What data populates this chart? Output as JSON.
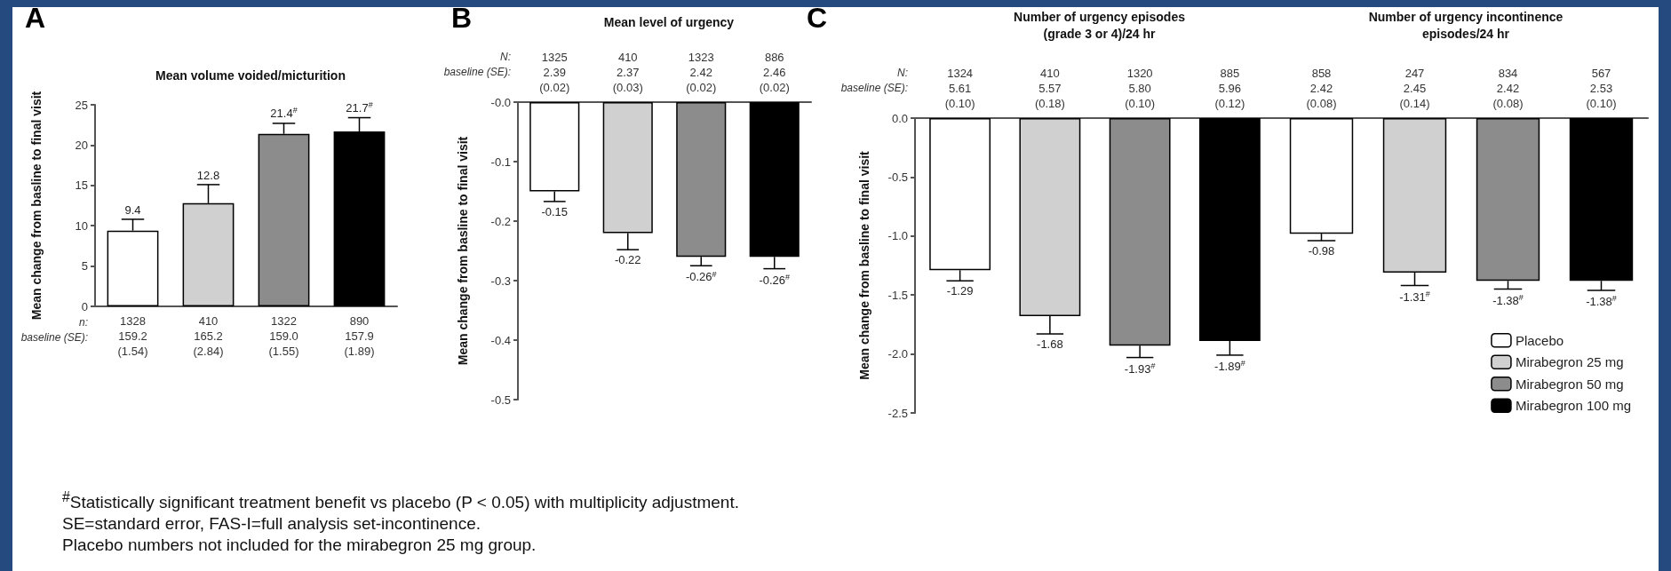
{
  "chart_data": [
    {
      "type": "bar",
      "title": "Mean volume voided/micturition",
      "ylabel": "Mean change from basline to final visit",
      "annotations": [
        "A",
        "n:",
        "baseline (SE):",
        "$^{#}$Statistically significant treatment benefit vs placebo (P < 0.05) with multiplicity adjustment.",
        "SE=standard error, FAS-I=full analysis set-incontinence.",
        "Placebo numbers not included for the mirabegron 25 mg group."
      ],
      "categories": [
        "1328\n159.2\n(1.54)",
        "410\n165.2\n(2.84)",
        "1322\n159.0\n(1.55)",
        "890\n157.9\n(1.89)"
      ],
      "series": [
        {
          "color": "#ffffff",
          "values": [
            9.4,
            null,
            null,
            null
          ],
          "errors": [
            [
              9.4,
              10.8
            ],
            null,
            null,
            null
          ],
          "value_labels": [
            "9.4",
            null,
            null,
            null
          ]
        },
        {
          "color": "#d0d0d0",
          "values": [
            null,
            12.8,
            null,
            null
          ],
          "errors": [
            null,
            [
              12.8,
              15.1
            ],
            null,
            null
          ],
          "value_labels": [
            null,
            "12.8",
            null,
            null
          ]
        },
        {
          "color": "#8c8c8c",
          "values": [
            null,
            null,
            21.4,
            null
          ],
          "errors": [
            null,
            null,
            [
              21.4,
              22.7
            ],
            null
          ],
          "value_labels": [
            null,
            null,
            "21.4$^{#}$",
            null
          ]
        },
        {
          "color": "#000000",
          "values": [
            null,
            null,
            null,
            21.7
          ],
          "errors": [
            null,
            null,
            null,
            [
              21.7,
              23.4
            ]
          ],
          "value_labels": [
            null,
            null,
            null,
            "21.7$^{#}$"
          ]
        }
      ],
      "ylim": [
        0,
        25
      ],
      "yticks": [
        0,
        5,
        10,
        15,
        20,
        25
      ],
      "grid": false,
      "legend": false
    },
    {
      "type": "bar",
      "title": "Mean level of urgency",
      "ylabel": "Mean change from basline to final visit",
      "annotations": [
        "B",
        "N:",
        "baseline (SE):"
      ],
      "categories": [
        "1325\n2.39\n(0.02)",
        "410\n2.37\n(0.03)",
        "1323\n2.42\n(0.02)",
        "886\n2.46\n(0.02)"
      ],
      "series": [
        {
          "color": "#ffffff",
          "values": [
            -0.15,
            null,
            null,
            null
          ],
          "errors": [
            [
              -0.167,
              -0.15
            ],
            null,
            null,
            null
          ],
          "value_labels": [
            "-0.15",
            null,
            null,
            null
          ]
        },
        {
          "color": "#d0d0d0",
          "values": [
            null,
            -0.22,
            null,
            null
          ],
          "errors": [
            null,
            [
              -0.248,
              -0.22
            ],
            null,
            null
          ],
          "value_labels": [
            null,
            "-0.22",
            null,
            null
          ]
        },
        {
          "color": "#8c8c8c",
          "values": [
            null,
            null,
            -0.26,
            null
          ],
          "errors": [
            null,
            null,
            [
              -0.275,
              -0.26
            ],
            null
          ],
          "value_labels": [
            null,
            null,
            "-0.26$^{#}$",
            null
          ]
        },
        {
          "color": "#000000",
          "values": [
            null,
            null,
            null,
            -0.26
          ],
          "errors": [
            null,
            null,
            null,
            [
              -0.28,
              -0.26
            ]
          ],
          "value_labels": [
            null,
            null,
            null,
            "-0.26$^{#}$"
          ]
        }
      ],
      "ylim": [
        -0.5,
        0
      ],
      "yticks": [
        {
          "value": 0,
          "label": "-0.0"
        },
        -0.1,
        -0.2,
        -0.3,
        -0.4,
        -0.5
      ],
      "grid": false,
      "legend": false
    },
    {
      "type": "bar",
      "title": "Number of urgency episodes\n(grade 3 or 4)/24 hr",
      "ylabel": "Mean change from basline to final visit",
      "annotations": [
        "C",
        "N:",
        "baseline (SE):"
      ],
      "categories": [
        "1324\n5.61\n(0.10)",
        "410\n5.57\n(0.18)",
        "1320\n5.80\n(0.10)",
        "885\n5.96\n(0.12)"
      ],
      "series": [
        {
          "color": "#ffffff",
          "values": [
            -1.29,
            null,
            null,
            null
          ],
          "errors": [
            [
              -1.38,
              -1.29
            ],
            null,
            null,
            null
          ],
          "value_labels": [
            "-1.29",
            null,
            null,
            null
          ]
        },
        {
          "color": "#d0d0d0",
          "values": [
            null,
            -1.68,
            null,
            null
          ],
          "errors": [
            null,
            [
              -1.83,
              -1.68
            ],
            null,
            null
          ],
          "value_labels": [
            null,
            "-1.68",
            null,
            null
          ]
        },
        {
          "color": "#8c8c8c",
          "values": [
            null,
            null,
            -1.93,
            null
          ],
          "errors": [
            null,
            null,
            [
              -2.03,
              -1.93
            ],
            null
          ],
          "value_labels": [
            null,
            null,
            "-1.93$^{#}$",
            null
          ]
        },
        {
          "color": "#000000",
          "values": [
            null,
            null,
            null,
            -1.89
          ],
          "errors": [
            null,
            null,
            null,
            [
              -2.01,
              -1.89
            ]
          ],
          "value_labels": [
            null,
            null,
            null,
            "-1.89$^{#}$"
          ]
        }
      ],
      "ylim": [
        -2.5,
        0
      ],
      "yticks": [
        {
          "value": 0,
          "label": "0.0"
        },
        -0.5,
        {
          "value": -1,
          "label": "-1.0"
        },
        -1.5,
        {
          "value": -2,
          "label": "-2.0"
        },
        -2.5
      ],
      "grid": false,
      "legend": false
    },
    {
      "type": "bar",
      "title": "Number of urgency incontinence\nepisodes/24 hr",
      "categories": [
        "858\n2.42\n(0.08)",
        "247\n2.45\n(0.14)",
        "834\n2.42\n(0.08)",
        "567\n2.53\n(0.10)"
      ],
      "series": [
        {
          "name": "Placebo",
          "color": "#ffffff",
          "values": [
            -0.98,
            null,
            null,
            null
          ],
          "errors": [
            [
              -1.04,
              -0.98
            ],
            null,
            null,
            null
          ],
          "value_labels": [
            "-0.98",
            null,
            null,
            null
          ]
        },
        {
          "name": "Mirabegron 25 mg",
          "color": "#d0d0d0",
          "values": [
            null,
            -1.31,
            null,
            null
          ],
          "errors": [
            null,
            [
              -1.42,
              -1.31
            ],
            null,
            null
          ],
          "value_labels": [
            null,
            "-1.31$^{#}$",
            null,
            null
          ]
        },
        {
          "name": "Mirabegron 50 mg",
          "color": "#8c8c8c",
          "values": [
            null,
            null,
            -1.38,
            null
          ],
          "errors": [
            null,
            null,
            [
              -1.45,
              -1.38
            ],
            null
          ],
          "value_labels": [
            null,
            null,
            "-1.38$^{#}$",
            null
          ]
        },
        {
          "name": "Mirabegron 100 mg",
          "color": "#000000",
          "values": [
            null,
            null,
            null,
            -1.38
          ],
          "errors": [
            null,
            null,
            null,
            [
              -1.46,
              -1.38
            ]
          ],
          "value_labels": [
            null,
            null,
            null,
            "-1.38$^{#}$"
          ]
        }
      ],
      "ylim": [
        -2.5,
        0
      ],
      "tick_labels": "x",
      "grid": false,
      "legend": "bottom right"
    }
  ]
}
